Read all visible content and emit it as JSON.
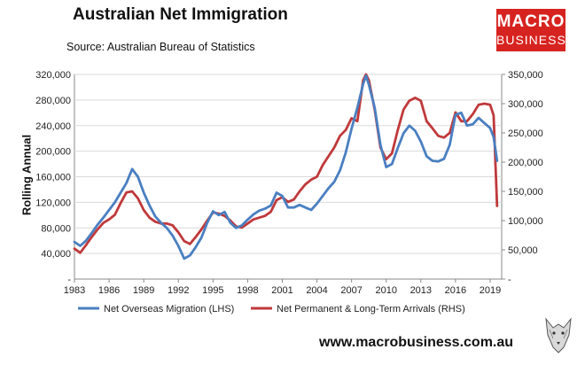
{
  "title": "Australian Net Immigration",
  "source": "Source: Australian Bureau of Statistics",
  "logo": {
    "line1": "MACRO",
    "line2": "BUSINESS"
  },
  "url": "www.macrobusiness.com.au",
  "colors": {
    "lhs": "#4a7fc1",
    "rhs": "#c0393b",
    "logo": "#d7231f"
  },
  "chart_data": {
    "type": "line",
    "ylabel": "Rolling Annual",
    "xlim": [
      1983,
      2020
    ],
    "x_ticks": [
      "1983",
      "1986",
      "1989",
      "1992",
      "1995",
      "1998",
      "2001",
      "2004",
      "2007",
      "2010",
      "2013",
      "2016",
      "2019"
    ],
    "y_left": {
      "lim": [
        0,
        320000
      ],
      "ticks": [
        "-",
        "40,000",
        "80,000",
        "120,000",
        "160,000",
        "200,000",
        "240,000",
        "280,000",
        "320,000"
      ]
    },
    "y_right": {
      "lim": [
        0,
        350000
      ],
      "ticks": [
        "-",
        "50,000",
        "100,000",
        "150,000",
        "200,000",
        "250,000",
        "300,000",
        "350,000"
      ]
    },
    "grid": true,
    "legend_position": "bottom",
    "series": [
      {
        "name": "Net Overseas Migration (LHS)",
        "axis": "left",
        "x": [
          1983,
          1983.5,
          1984,
          1984.5,
          1985,
          1985.5,
          1986,
          1986.5,
          1987,
          1987.5,
          1988,
          1988.5,
          1989,
          1989.5,
          1990,
          1990.5,
          1991,
          1991.5,
          1992,
          1992.5,
          1993,
          1993.5,
          1994,
          1994.5,
          1995,
          1995.5,
          1996,
          1996.5,
          1997,
          1997.5,
          1998,
          1998.5,
          1999,
          1999.5,
          2000,
          2000.5,
          2001,
          2001.5,
          2002,
          2002.5,
          2003,
          2003.5,
          2004,
          2004.5,
          2005,
          2005.5,
          2006,
          2006.5,
          2007,
          2007.5,
          2008,
          2008.25,
          2008.5,
          2009,
          2009.5,
          2010,
          2010.5,
          2011,
          2011.5,
          2012,
          2012.5,
          2013,
          2013.5,
          2014,
          2014.5,
          2015,
          2015.5,
          2016,
          2016.5,
          2017,
          2017.5,
          2018,
          2018.5,
          2019,
          2019.3,
          2019.6
        ],
        "values": [
          58000,
          52000,
          60000,
          72000,
          85000,
          96000,
          108000,
          120000,
          135000,
          150000,
          172000,
          160000,
          135000,
          115000,
          98000,
          88000,
          80000,
          68000,
          52000,
          32000,
          37000,
          50000,
          65000,
          88000,
          106000,
          100000,
          105000,
          88000,
          80000,
          84000,
          93000,
          101000,
          107000,
          110000,
          115000,
          135000,
          130000,
          112000,
          112000,
          116000,
          112000,
          108000,
          118000,
          130000,
          142000,
          152000,
          170000,
          198000,
          235000,
          268000,
          305000,
          318000,
          304000,
          268000,
          210000,
          175000,
          180000,
          205000,
          228000,
          240000,
          232000,
          215000,
          192000,
          185000,
          184000,
          188000,
          210000,
          257000,
          260000,
          240000,
          242000,
          252000,
          244000,
          236000,
          222000,
          185000
        ]
      },
      {
        "name": "Net Permanent & Long-Term Arrivals (RHS)",
        "axis": "right",
        "x": [
          1983,
          1983.5,
          1984,
          1984.5,
          1985,
          1985.5,
          1986,
          1986.5,
          1987,
          1987.5,
          1988,
          1988.5,
          1989,
          1989.5,
          1990,
          1990.5,
          1991,
          1991.5,
          1992,
          1992.5,
          1993,
          1993.5,
          1994,
          1994.5,
          1995,
          1995.5,
          1996,
          1996.5,
          1997,
          1997.5,
          1998,
          1998.5,
          1999,
          1999.5,
          2000,
          2000.5,
          2001,
          2001.5,
          2002,
          2002.5,
          2003,
          2003.5,
          2004,
          2004.5,
          2005,
          2005.5,
          2006,
          2006.5,
          2007,
          2007.5,
          2008,
          2008.25,
          2008.5,
          2009,
          2009.5,
          2010,
          2010.5,
          2011,
          2011.5,
          2012,
          2012.5,
          2013,
          2013.5,
          2014,
          2014.5,
          2015,
          2015.5,
          2016,
          2016.5,
          2017,
          2017.5,
          2018,
          2018.5,
          2019,
          2019.3,
          2019.6
        ],
        "values": [
          52000,
          45000,
          58000,
          72000,
          85000,
          96000,
          102000,
          110000,
          130000,
          148000,
          150000,
          138000,
          118000,
          105000,
          98000,
          95000,
          95000,
          92000,
          80000,
          65000,
          60000,
          72000,
          85000,
          100000,
          114000,
          112000,
          108000,
          100000,
          90000,
          88000,
          95000,
          102000,
          105000,
          108000,
          115000,
          135000,
          140000,
          132000,
          136000,
          150000,
          162000,
          170000,
          175000,
          195000,
          210000,
          225000,
          245000,
          255000,
          275000,
          270000,
          340000,
          350000,
          340000,
          290000,
          225000,
          205000,
          215000,
          255000,
          290000,
          305000,
          310000,
          305000,
          270000,
          258000,
          245000,
          242000,
          250000,
          285000,
          270000,
          270000,
          282000,
          298000,
          300000,
          298000,
          280000,
          125000
        ]
      }
    ]
  }
}
